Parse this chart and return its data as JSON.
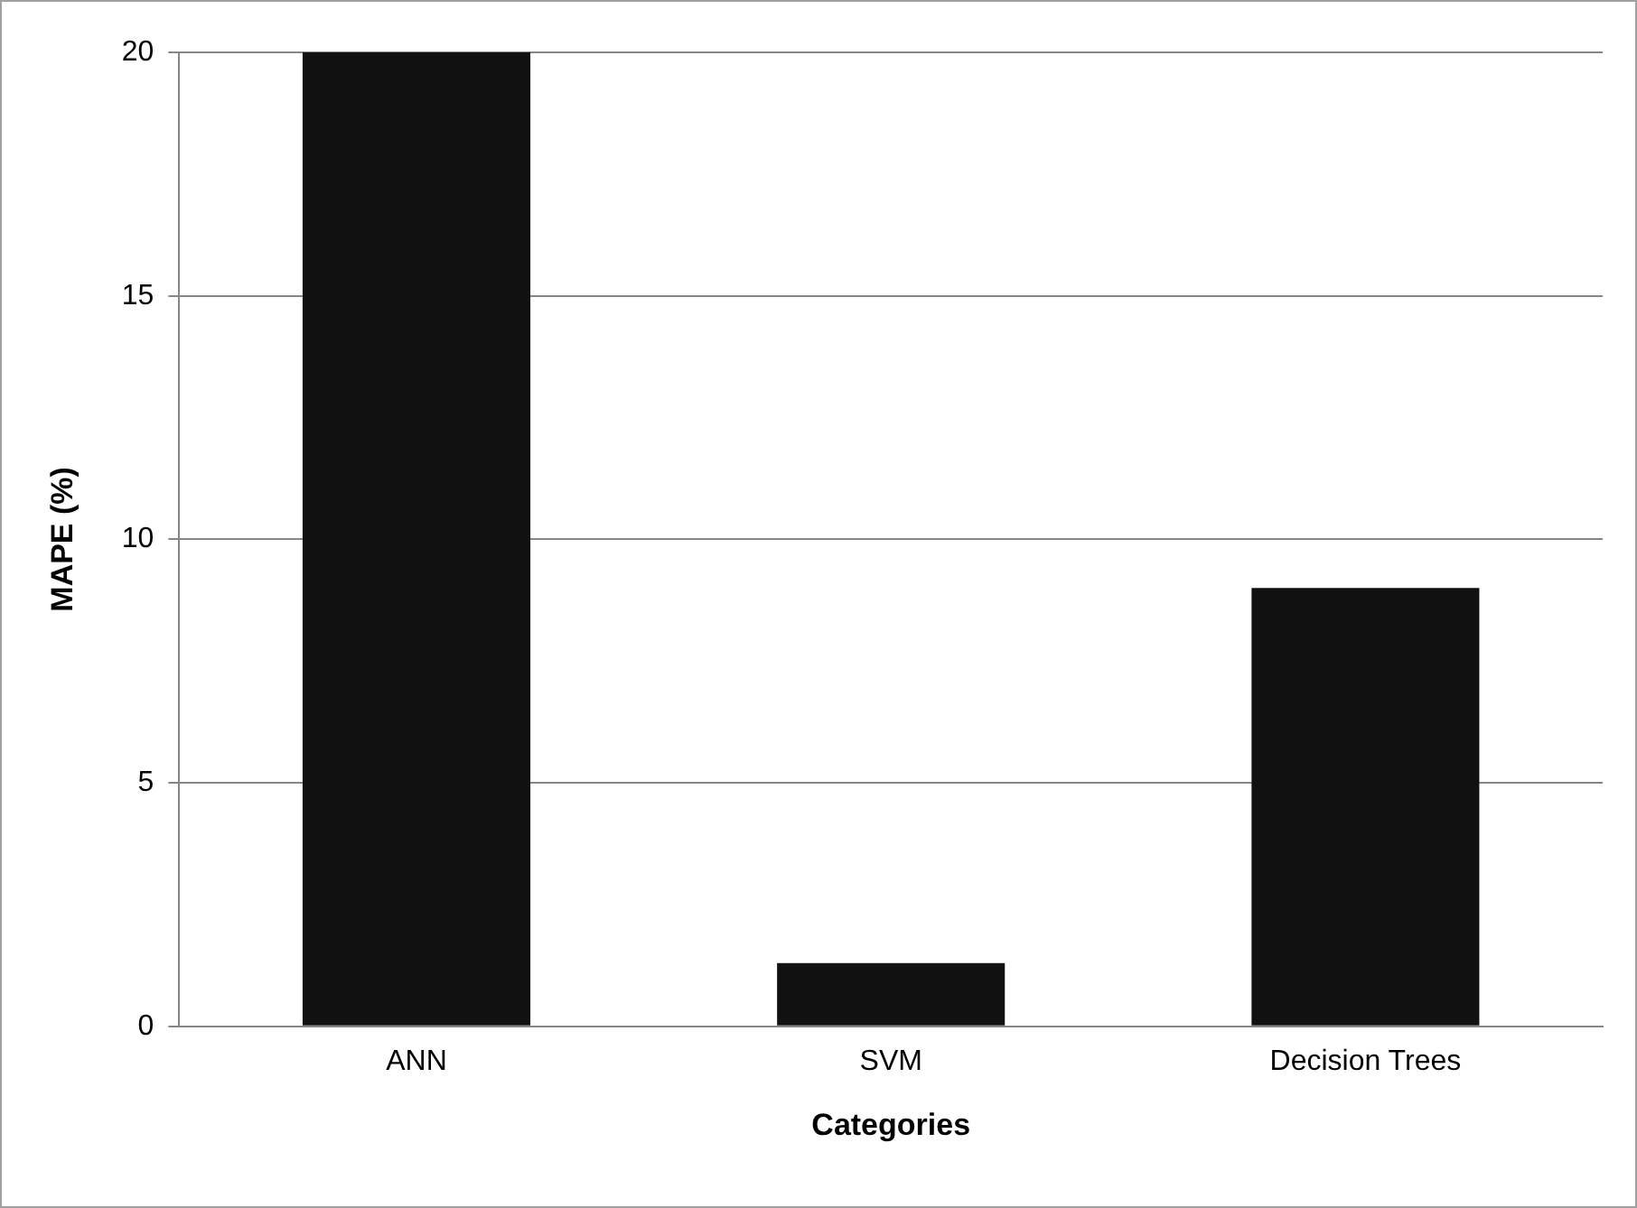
{
  "chart_data": {
    "type": "bar",
    "xlabel": "Categories",
    "ylabel": "MAPE (%)",
    "categories": [
      "ANN",
      "SVM",
      "Decision Trees"
    ],
    "values": [
      20,
      1.3,
      9
    ],
    "color": "#111111",
    "ylim": [
      0,
      20
    ],
    "yticks": [
      0,
      5,
      10,
      15,
      20
    ],
    "grid": "y"
  }
}
